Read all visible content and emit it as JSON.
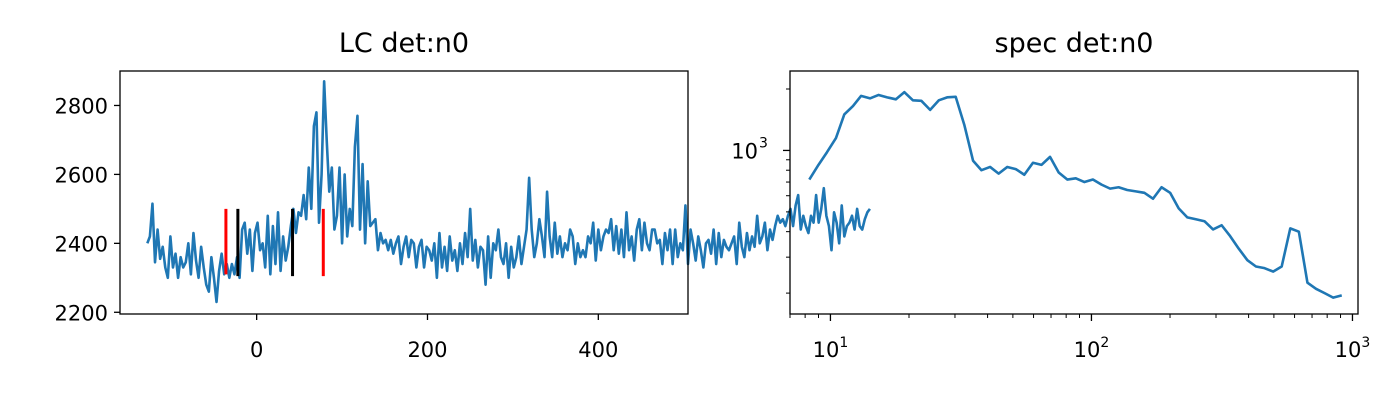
{
  "chart_data": [
    {
      "type": "line",
      "title": "LC det:n0",
      "xlabel": "",
      "ylabel": "",
      "xlim": [
        -160,
        505
      ],
      "ylim": [
        2195,
        2900
      ],
      "xticks": [
        0,
        200,
        400
      ],
      "yticks": [
        2200,
        2400,
        2600,
        2800
      ],
      "grid": false,
      "series": [
        {
          "color": "#1f77b4",
          "x_start": -128,
          "x_step": 3,
          "values": [
            2400,
            2420,
            2515,
            2345,
            2440,
            2355,
            2390,
            2330,
            2300,
            2420,
            2330,
            2370,
            2300,
            2360,
            2330,
            2345,
            2400,
            2310,
            2430,
            2350,
            2300,
            2390,
            2330,
            2280,
            2260,
            2360,
            2300,
            2230,
            2320,
            2370,
            2310,
            2340,
            2300,
            2340,
            2310,
            2360,
            2300,
            2440,
            2460,
            2370,
            2440,
            2320,
            2430,
            2460,
            2380,
            2400,
            2330,
            2480,
            2310,
            2450,
            2340,
            2490,
            2320,
            2420,
            2350,
            2390,
            2450,
            2500,
            2430,
            2490,
            2480,
            2540,
            2470,
            2620,
            2500,
            2740,
            2780,
            2460,
            2600,
            2870,
            2700,
            2550,
            2620,
            2440,
            2480,
            2620,
            2400,
            2600,
            2420,
            2500,
            2450,
            2680,
            2770,
            2440,
            2630,
            2400,
            2580,
            2450,
            2460,
            2470,
            2380,
            2430,
            2400,
            2410,
            2380,
            2410,
            2370,
            2400,
            2420,
            2340,
            2390,
            2420,
            2360,
            2410,
            2400,
            2330,
            2390,
            2410,
            2330,
            2390,
            2380,
            2350,
            2400,
            2300,
            2430,
            2330,
            2390,
            2320,
            2420,
            2350,
            2380,
            2320,
            2400,
            2340,
            2430,
            2360,
            2500,
            2350,
            2410,
            2330,
            2390,
            2380,
            2280,
            2420,
            2300,
            2400,
            2380,
            2440,
            2360,
            2340,
            2400,
            2300,
            2390,
            2330,
            2360,
            2420,
            2340,
            2390,
            2440,
            2590,
            2440,
            2360,
            2400,
            2470,
            2420,
            2360,
            2550,
            2420,
            2360,
            2460,
            2370,
            2420,
            2360,
            2400,
            2380,
            2440,
            2420,
            2340,
            2400,
            2360,
            2380,
            2360,
            2420,
            2400,
            2460,
            2350,
            2440,
            2380,
            2420,
            2440,
            2430,
            2470,
            2380,
            2450,
            2370,
            2440,
            2360,
            2490,
            2380,
            2420,
            2350,
            2440,
            2470,
            2380,
            2460,
            2400,
            2380,
            2440,
            2440,
            2400,
            2410,
            2340,
            2430,
            2380,
            2440,
            2340,
            2440,
            2360,
            2400,
            2380,
            2510,
            2340,
            2440,
            2400,
            2350,
            2420,
            2380,
            2330,
            2400,
            2410,
            2370,
            2440,
            2340,
            2430,
            2360,
            2410,
            2390,
            2380,
            2400,
            2420,
            2340,
            2460,
            2390,
            2360,
            2430,
            2380,
            2420,
            2390,
            2480,
            2400,
            2420,
            2460,
            2380,
            2440,
            2410,
            2450,
            2480,
            2460,
            2470,
            2450,
            2480,
            2500,
            2450,
            2510,
            2540,
            2440,
            2480,
            2450,
            2430,
            2480,
            2460,
            2540,
            2460,
            2500,
            2560,
            2480,
            2450,
            2380,
            2490,
            2460,
            2400,
            2510,
            2420,
            2450,
            2460,
            2480,
            2440,
            2500,
            2450,
            2440,
            2470,
            2490,
            2500
          ]
        }
      ],
      "vlines": [
        {
          "x": -36,
          "ymin": 2310,
          "ymax": 2500,
          "color": "#ff0000"
        },
        {
          "x": -22,
          "ymin": 2305,
          "ymax": 2500,
          "color": "#000000"
        },
        {
          "x": 42,
          "ymin": 2305,
          "ymax": 2500,
          "color": "#000000"
        },
        {
          "x": 78,
          "ymin": 2305,
          "ymax": 2500,
          "color": "#ff0000"
        }
      ]
    },
    {
      "type": "line",
      "title": "spec det:n0",
      "xscale": "log",
      "yscale": "log",
      "xlim": [
        7.0,
        1050
      ],
      "ylim": [
        158,
        2450
      ],
      "xticks": [
        10,
        100,
        1000
      ],
      "xtick_labels": [
        {
          "base": "10",
          "exp": "1"
        },
        {
          "base": "10",
          "exp": "2"
        },
        {
          "base": "10",
          "exp": "3"
        }
      ],
      "yticks": [
        1000
      ],
      "ytick_labels": [
        {
          "base": "10",
          "exp": "3"
        }
      ],
      "grid": false,
      "series": [
        {
          "color": "#1f77b4",
          "x": [
            8.3,
            9.0,
            9.7,
            10.5,
            11.3,
            12.2,
            13.1,
            14.2,
            15.3,
            16.5,
            17.8,
            19.2,
            20.7,
            22.3,
            24.1,
            26.0,
            28.0,
            30.2,
            32.6,
            35.2,
            37.9,
            40.9,
            44.1,
            47.6,
            51.3,
            55.3,
            59.7,
            64.4,
            69.4,
            74.9,
            80.8,
            87.1,
            94.0,
            101.3,
            109.3,
            117.9,
            127.1,
            137.1,
            147.9,
            159.5,
            172.1,
            185.6,
            200.2,
            215.9,
            232.9,
            251.2,
            271.0,
            292.3,
            315.3,
            340.1,
            366.8,
            395.7,
            426.8,
            460.4,
            496.6,
            535.6,
            577.7,
            623.2,
            672.2,
            725.0,
            782.0,
            843.5,
            909.8
          ],
          "values": [
            720,
            850,
            980,
            1150,
            1500,
            1650,
            1850,
            1800,
            1870,
            1820,
            1780,
            1930,
            1760,
            1750,
            1580,
            1760,
            1820,
            1830,
            1330,
            890,
            800,
            830,
            770,
            830,
            810,
            760,
            870,
            850,
            930,
            780,
            720,
            730,
            700,
            720,
            680,
            650,
            660,
            640,
            630,
            620,
            580,
            660,
            620,
            520,
            470,
            460,
            450,
            410,
            430,
            380,
            330,
            290,
            270,
            265,
            255,
            270,
            415,
            400,
            225,
            210,
            200,
            190,
            195
          ]
        }
      ]
    }
  ]
}
